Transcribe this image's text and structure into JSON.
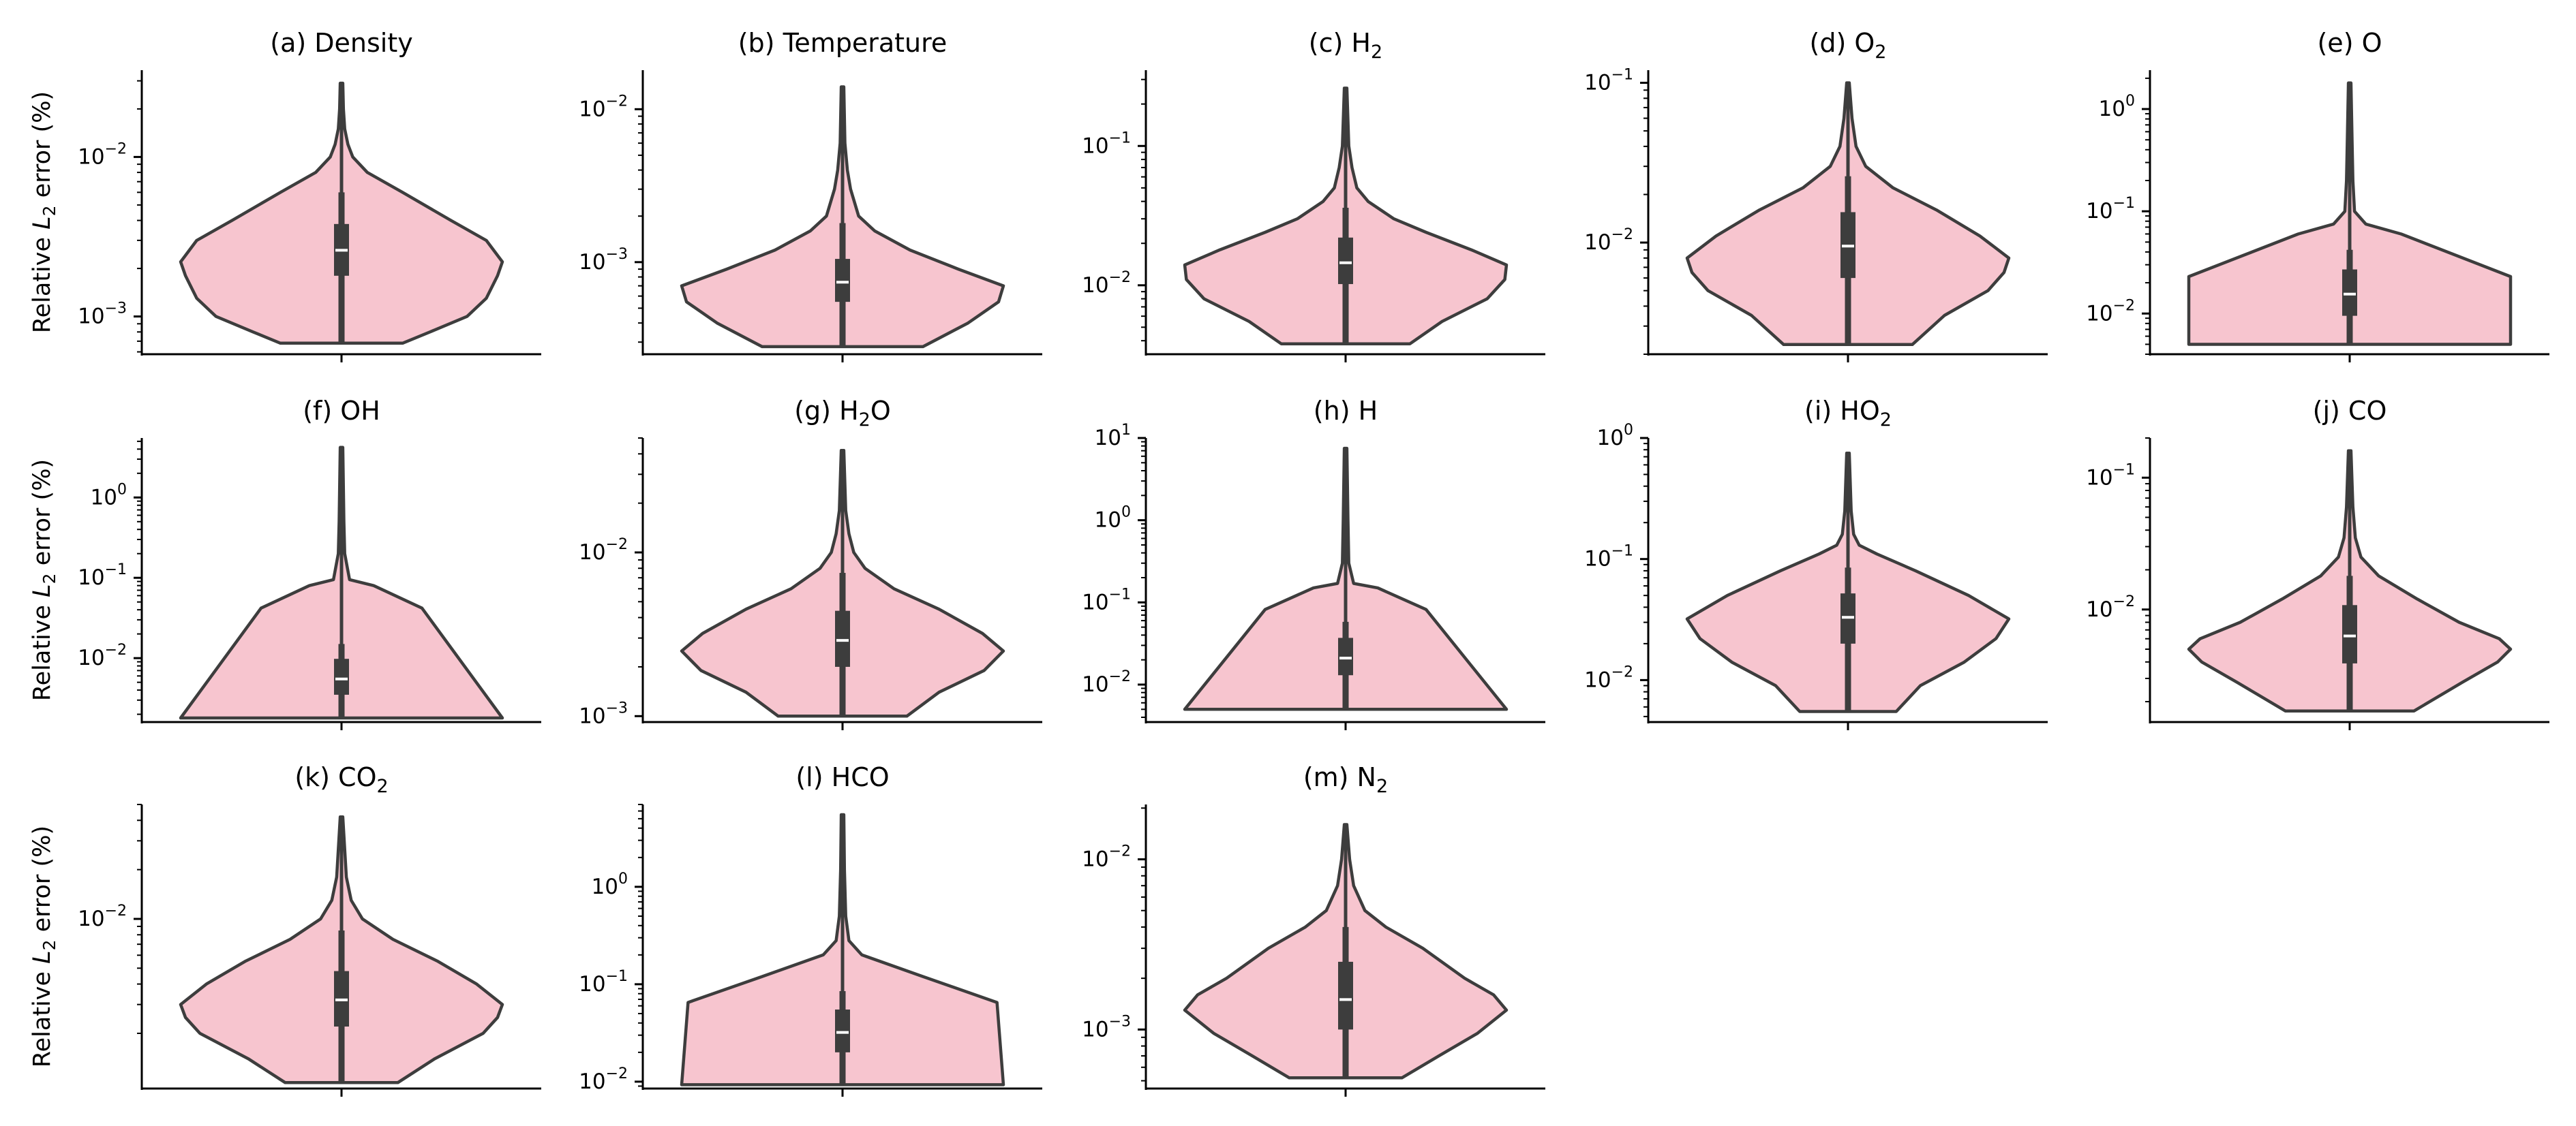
{
  "figure": {
    "ylabel_main": "Relative ",
    "ylabel_sym": "L",
    "ylabel_sub": "2",
    "ylabel_rest": " error (%)"
  },
  "colors": {
    "violin_fill": "#f7c5cf",
    "outline": "#3d3d3d",
    "box": "#3d3d3d",
    "median": "#ffffff"
  },
  "chart_data": [
    {
      "type": "violin",
      "title": "(a) Density",
      "title_main": "(a) Density",
      "title_sub": "",
      "title_after": "",
      "yscale": "log",
      "ylim": [
        0.00058,
        0.035
      ],
      "yticks": [
        0.001,
        0.01
      ],
      "ytick_labels": [
        [
          "10",
          "−3"
        ],
        [
          "10",
          "−2"
        ]
      ],
      "ylabel": true,
      "min": 0.00068,
      "max": 0.029,
      "q1": 0.0018,
      "median": 0.0026,
      "q3": 0.0038,
      "whisker_low": 0.00068,
      "whisker_high": 0.006,
      "kde": [
        [
          0.00068,
          0.38
        ],
        [
          0.0008,
          0.55
        ],
        [
          0.001,
          0.78
        ],
        [
          0.0013,
          0.9
        ],
        [
          0.0018,
          0.97
        ],
        [
          0.0022,
          1.0
        ],
        [
          0.003,
          0.9
        ],
        [
          0.004,
          0.68
        ],
        [
          0.006,
          0.38
        ],
        [
          0.008,
          0.16
        ],
        [
          0.01,
          0.07
        ],
        [
          0.012,
          0.04
        ],
        [
          0.015,
          0.02
        ],
        [
          0.02,
          0.012
        ],
        [
          0.029,
          0.008
        ]
      ]
    },
    {
      "type": "violin",
      "title": "(b) Temperature",
      "title_main": "(b) Temperature",
      "title_sub": "",
      "title_after": "",
      "yscale": "log",
      "ylim": [
        0.00025,
        0.018
      ],
      "yticks": [
        0.001,
        0.01
      ],
      "ytick_labels": [
        [
          "10",
          "−3"
        ],
        [
          "10",
          "−2"
        ]
      ],
      "ylabel": false,
      "min": 0.00028,
      "max": 0.014,
      "q1": 0.00055,
      "median": 0.00074,
      "q3": 0.00105,
      "whisker_low": 0.00028,
      "whisker_high": 0.0018,
      "kde": [
        [
          0.00028,
          0.5
        ],
        [
          0.0004,
          0.78
        ],
        [
          0.00055,
          0.97
        ],
        [
          0.0007,
          1.0
        ],
        [
          0.0009,
          0.72
        ],
        [
          0.0012,
          0.42
        ],
        [
          0.0016,
          0.2
        ],
        [
          0.002,
          0.1
        ],
        [
          0.003,
          0.05
        ],
        [
          0.004,
          0.03
        ],
        [
          0.006,
          0.015
        ],
        [
          0.014,
          0.008
        ]
      ]
    },
    {
      "type": "violin",
      "title": "(c) H₂",
      "title_main": "(c) H",
      "title_sub": "2",
      "title_after": "",
      "yscale": "log",
      "ylim": [
        0.0032,
        0.35
      ],
      "yticks": [
        0.01,
        0.1
      ],
      "ytick_labels": [
        [
          "10",
          "−2"
        ],
        [
          "10",
          "−1"
        ]
      ],
      "ylabel": false,
      "min": 0.0038,
      "max": 0.26,
      "q1": 0.0102,
      "median": 0.0145,
      "q3": 0.022,
      "whisker_low": 0.0038,
      "whisker_high": 0.036,
      "kde": [
        [
          0.0038,
          0.4
        ],
        [
          0.0055,
          0.6
        ],
        [
          0.008,
          0.88
        ],
        [
          0.011,
          0.99
        ],
        [
          0.014,
          1.0
        ],
        [
          0.018,
          0.78
        ],
        [
          0.024,
          0.5
        ],
        [
          0.03,
          0.3
        ],
        [
          0.04,
          0.14
        ],
        [
          0.05,
          0.07
        ],
        [
          0.07,
          0.04
        ],
        [
          0.1,
          0.02
        ],
        [
          0.26,
          0.008
        ]
      ]
    },
    {
      "type": "violin",
      "title": "(d) O₂",
      "title_main": "(d) O",
      "title_sub": "2",
      "title_after": "",
      "yscale": "log",
      "ylim": [
        0.002,
        0.12
      ],
      "yticks": [
        0.01,
        0.1
      ],
      "ytick_labels": [
        [
          "10",
          "−2"
        ],
        [
          "10",
          "−1"
        ]
      ],
      "ylabel": false,
      "min": 0.0023,
      "max": 0.1,
      "q1": 0.006,
      "median": 0.0095,
      "q3": 0.0155,
      "whisker_low": 0.0023,
      "whisker_high": 0.026,
      "kde": [
        [
          0.0023,
          0.4
        ],
        [
          0.0035,
          0.6
        ],
        [
          0.005,
          0.87
        ],
        [
          0.0065,
          0.97
        ],
        [
          0.008,
          1.0
        ],
        [
          0.011,
          0.82
        ],
        [
          0.016,
          0.55
        ],
        [
          0.022,
          0.28
        ],
        [
          0.03,
          0.11
        ],
        [
          0.04,
          0.05
        ],
        [
          0.06,
          0.025
        ],
        [
          0.1,
          0.008
        ]
      ]
    },
    {
      "type": "violin",
      "title": "(e) O",
      "title_main": "(e) O",
      "title_sub": "",
      "title_after": "",
      "yscale": "log",
      "ylim": [
        0.004,
        2.4
      ],
      "yticks": [
        0.01,
        0.1,
        1
      ],
      "ytick_labels": [
        [
          "10",
          "−2"
        ],
        [
          "10",
          "−1"
        ],
        [
          "10",
          "0"
        ]
      ],
      "ylabel": false,
      "min": 0.005,
      "max": 1.8,
      "q1": 0.0095,
      "median": 0.0155,
      "q3": 0.027,
      "whisker_low": 0.005,
      "whisker_high": 0.042,
      "kde": [
        [
          0.005,
          1.0
        ],
        [
          0.023,
          1.0
        ],
        [
          0.06,
          0.32
        ],
        [
          0.075,
          0.1
        ],
        [
          0.1,
          0.03
        ],
        [
          0.2,
          0.02
        ],
        [
          0.5,
          0.015
        ],
        [
          1.8,
          0.008
        ]
      ]
    },
    {
      "type": "violin",
      "title": "(f) OH",
      "title_main": "(f) OH",
      "title_sub": "",
      "title_after": "",
      "yscale": "log",
      "ylim": [
        0.0016,
        5.5
      ],
      "yticks": [
        0.01,
        0.1,
        1
      ],
      "ytick_labels": [
        [
          "10",
          "−2"
        ],
        [
          "10",
          "−1"
        ],
        [
          "10",
          "0"
        ]
      ],
      "ylabel": true,
      "min": 0.0018,
      "max": 4.2,
      "q1": 0.0035,
      "median": 0.0055,
      "q3": 0.0098,
      "whisker_low": 0.0018,
      "whisker_high": 0.015,
      "kde": [
        [
          0.0018,
          1.0
        ],
        [
          0.042,
          0.5
        ],
        [
          0.08,
          0.2
        ],
        [
          0.095,
          0.05
        ],
        [
          0.2,
          0.02
        ],
        [
          0.5,
          0.015
        ],
        [
          4.2,
          0.008
        ]
      ]
    },
    {
      "type": "violin",
      "title": "(g) H₂O",
      "title_main": "(g) H",
      "title_sub": "2",
      "title_after": "O",
      "yscale": "log",
      "ylim": [
        0.00092,
        0.05
      ],
      "yticks": [
        0.001,
        0.01
      ],
      "ytick_labels": [
        [
          "10",
          "−3"
        ],
        [
          "10",
          "−2"
        ]
      ],
      "ylabel": false,
      "min": 0.001,
      "max": 0.042,
      "q1": 0.002,
      "median": 0.0029,
      "q3": 0.0044,
      "whisker_low": 0.001,
      "whisker_high": 0.0075,
      "kde": [
        [
          0.001,
          0.4
        ],
        [
          0.0014,
          0.6
        ],
        [
          0.0019,
          0.88
        ],
        [
          0.0025,
          1.0
        ],
        [
          0.0032,
          0.87
        ],
        [
          0.0045,
          0.6
        ],
        [
          0.006,
          0.32
        ],
        [
          0.008,
          0.14
        ],
        [
          0.01,
          0.07
        ],
        [
          0.013,
          0.04
        ],
        [
          0.018,
          0.02
        ],
        [
          0.042,
          0.008
        ]
      ]
    },
    {
      "type": "violin",
      "title": "(h) H",
      "title_main": "(h) H",
      "title_sub": "",
      "title_after": "",
      "yscale": "log",
      "ylim": [
        0.0035,
        10
      ],
      "yticks": [
        0.01,
        0.1,
        1,
        10
      ],
      "ytick_labels": [
        [
          "10",
          "−2"
        ],
        [
          "10",
          "−1"
        ],
        [
          "10",
          "0"
        ],
        [
          "10",
          "1"
        ]
      ],
      "ylabel": false,
      "min": 0.005,
      "max": 7.5,
      "q1": 0.013,
      "median": 0.021,
      "q3": 0.037,
      "whisker_low": 0.005,
      "whisker_high": 0.058,
      "kde": [
        [
          0.005,
          1.0
        ],
        [
          0.082,
          0.5
        ],
        [
          0.15,
          0.2
        ],
        [
          0.17,
          0.05
        ],
        [
          0.3,
          0.02
        ],
        [
          1.0,
          0.015
        ],
        [
          7.5,
          0.008
        ]
      ]
    },
    {
      "type": "violin",
      "title": "(i) HO₂",
      "title_main": "(i) HO",
      "title_sub": "2",
      "title_after": "",
      "yscale": "log",
      "ylim": [
        0.0045,
        1.0
      ],
      "yticks": [
        0.01,
        0.1,
        1
      ],
      "ytick_labels": [
        [
          "10",
          "−2"
        ],
        [
          "10",
          "−1"
        ],
        [
          "10",
          "0"
        ]
      ],
      "ylabel": false,
      "min": 0.0055,
      "max": 0.75,
      "q1": 0.02,
      "median": 0.033,
      "q3": 0.052,
      "whisker_low": 0.0055,
      "whisker_high": 0.085,
      "kde": [
        [
          0.0055,
          0.3
        ],
        [
          0.009,
          0.45
        ],
        [
          0.014,
          0.72
        ],
        [
          0.022,
          0.92
        ],
        [
          0.032,
          1.0
        ],
        [
          0.05,
          0.75
        ],
        [
          0.08,
          0.42
        ],
        [
          0.11,
          0.18
        ],
        [
          0.13,
          0.07
        ],
        [
          0.16,
          0.035
        ],
        [
          0.25,
          0.02
        ],
        [
          0.75,
          0.008
        ]
      ]
    },
    {
      "type": "violin",
      "title": "(j) CO",
      "title_main": "(j) CO",
      "title_sub": "",
      "title_after": "",
      "yscale": "log",
      "ylim": [
        0.0014,
        0.2
      ],
      "yticks": [
        0.01,
        0.1
      ],
      "ytick_labels": [
        [
          "10",
          "−2"
        ],
        [
          "10",
          "−1"
        ]
      ],
      "ylabel": false,
      "min": 0.0017,
      "max": 0.16,
      "q1": 0.0039,
      "median": 0.0063,
      "q3": 0.0108,
      "whisker_low": 0.0017,
      "whisker_high": 0.018,
      "kde": [
        [
          0.0017,
          0.4
        ],
        [
          0.0028,
          0.7
        ],
        [
          0.004,
          0.92
        ],
        [
          0.005,
          1.0
        ],
        [
          0.006,
          0.93
        ],
        [
          0.008,
          0.68
        ],
        [
          0.012,
          0.42
        ],
        [
          0.018,
          0.18
        ],
        [
          0.025,
          0.07
        ],
        [
          0.035,
          0.035
        ],
        [
          0.06,
          0.02
        ],
        [
          0.16,
          0.008
        ]
      ]
    },
    {
      "type": "violin",
      "title": "(k) CO₂",
      "title_main": "(k) CO",
      "title_sub": "2",
      "title_after": "",
      "yscale": "log",
      "ylim": [
        0.00092,
        0.05
      ],
      "yticks": [
        0.01
      ],
      "ytick_labels": [
        [
          "10",
          "−2"
        ]
      ],
      "ylabel": true,
      "min": 0.001,
      "max": 0.042,
      "q1": 0.0022,
      "median": 0.0032,
      "q3": 0.0048,
      "whisker_low": 0.001,
      "whisker_high": 0.0085,
      "kde": [
        [
          0.001,
          0.35
        ],
        [
          0.0014,
          0.58
        ],
        [
          0.002,
          0.88
        ],
        [
          0.0025,
          0.97
        ],
        [
          0.003,
          1.0
        ],
        [
          0.004,
          0.84
        ],
        [
          0.0055,
          0.6
        ],
        [
          0.0075,
          0.32
        ],
        [
          0.01,
          0.13
        ],
        [
          0.013,
          0.06
        ],
        [
          0.018,
          0.03
        ],
        [
          0.042,
          0.008
        ]
      ]
    },
    {
      "type": "violin",
      "title": "(l) HCO",
      "title_main": "(l) HCO",
      "title_sub": "",
      "title_after": "",
      "yscale": "log",
      "ylim": [
        0.0085,
        7.0
      ],
      "yticks": [
        0.01,
        0.1,
        1
      ],
      "ytick_labels": [
        [
          "10",
          "−2"
        ],
        [
          "10",
          "−1"
        ],
        [
          "10",
          "0"
        ]
      ],
      "ylabel": false,
      "min": 0.0093,
      "max": 5.5,
      "q1": 0.02,
      "median": 0.032,
      "q3": 0.055,
      "whisker_low": 0.0093,
      "whisker_high": 0.085,
      "kde": [
        [
          0.0093,
          1.0
        ],
        [
          0.065,
          0.96
        ],
        [
          0.12,
          0.5
        ],
        [
          0.2,
          0.12
        ],
        [
          0.28,
          0.04
        ],
        [
          0.5,
          0.02
        ],
        [
          1.5,
          0.012
        ],
        [
          5.5,
          0.008
        ]
      ]
    },
    {
      "type": "violin",
      "title": "(m) N₂",
      "title_main": "(m) N",
      "title_sub": "2",
      "title_after": "",
      "yscale": "log",
      "ylim": [
        0.00045,
        0.021
      ],
      "yticks": [
        0.001,
        0.01
      ],
      "ytick_labels": [
        [
          "10",
          "−3"
        ],
        [
          "10",
          "−2"
        ]
      ],
      "ylabel": false,
      "min": 0.00052,
      "max": 0.016,
      "q1": 0.001,
      "median": 0.0015,
      "q3": 0.0025,
      "whisker_low": 0.00052,
      "whisker_high": 0.004,
      "kde": [
        [
          0.00052,
          0.35
        ],
        [
          0.0007,
          0.58
        ],
        [
          0.00095,
          0.82
        ],
        [
          0.0013,
          1.0
        ],
        [
          0.0016,
          0.92
        ],
        [
          0.002,
          0.74
        ],
        [
          0.003,
          0.48
        ],
        [
          0.004,
          0.25
        ],
        [
          0.005,
          0.12
        ],
        [
          0.007,
          0.05
        ],
        [
          0.01,
          0.025
        ],
        [
          0.016,
          0.008
        ]
      ]
    }
  ]
}
